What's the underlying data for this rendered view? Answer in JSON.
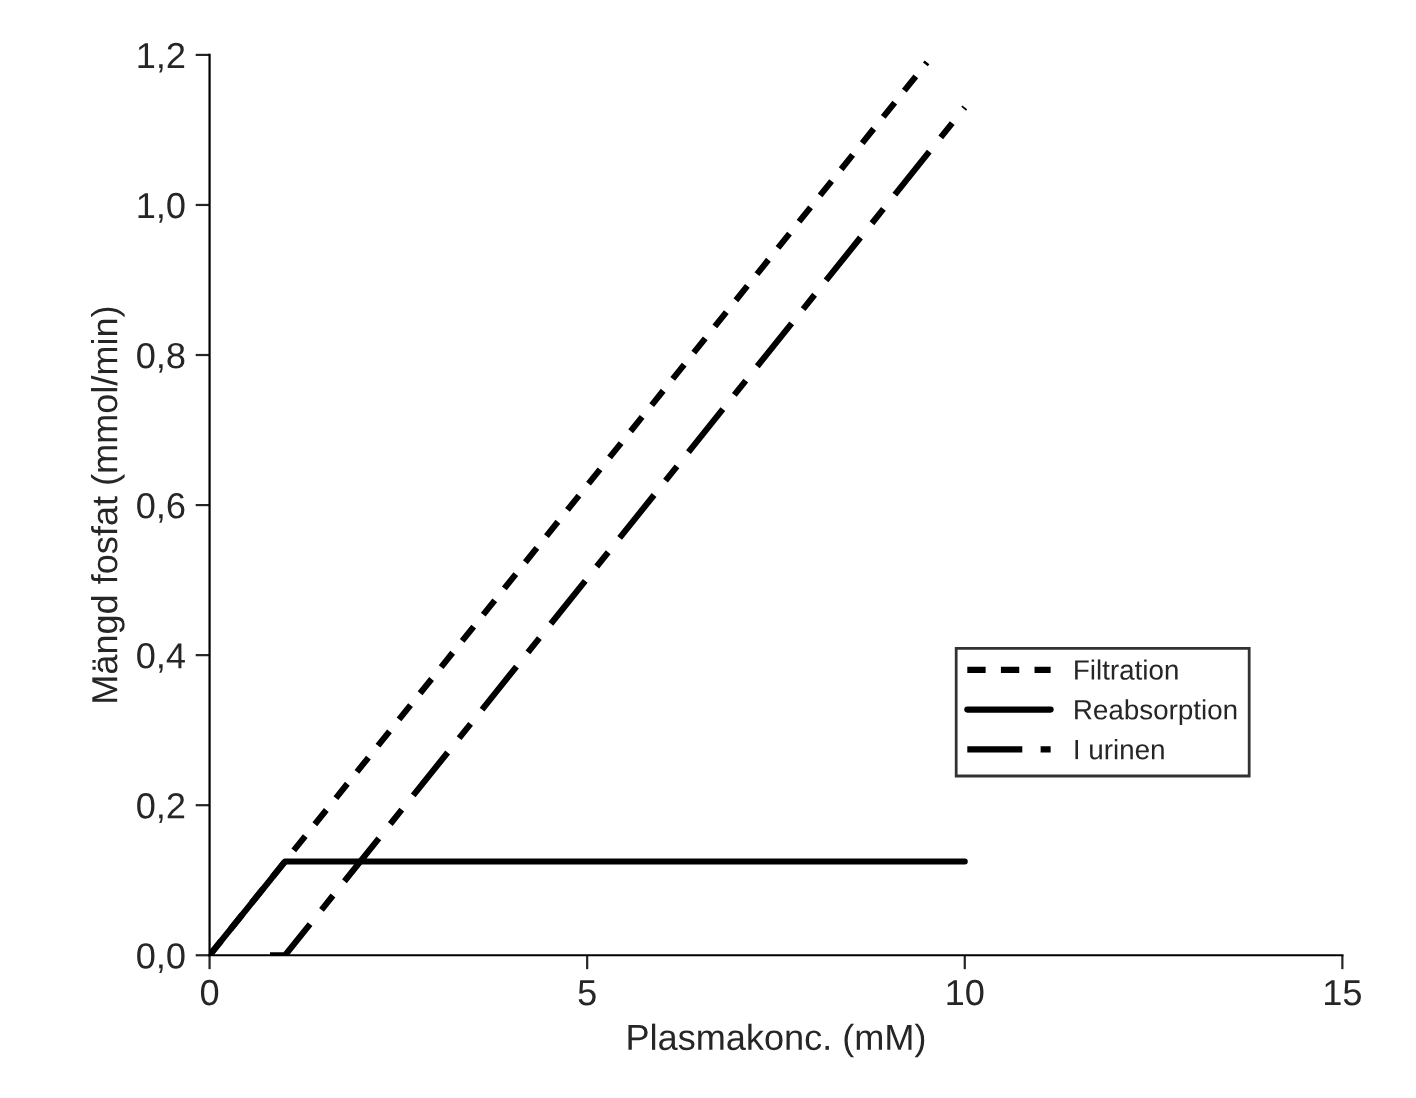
{
  "chart_data": {
    "type": "line",
    "xlabel": "Plasmakonc. (mM)",
    "ylabel": "Mängd fosfat (mmol/min)",
    "xlim": [
      0,
      15
    ],
    "xticks": [
      0,
      5,
      10,
      15
    ],
    "ylim": [
      0,
      1.2
    ],
    "yticks": [
      {
        "value": 0,
        "label": "0,0"
      },
      {
        "value": 0.2,
        "label": "0,2"
      },
      {
        "value": 0.4,
        "label": "0,4"
      },
      {
        "value": 0.6,
        "label": "0,6"
      },
      {
        "value": 0.8,
        "label": "0,8"
      },
      {
        "value": 1.0,
        "label": "1,0"
      },
      {
        "value": 1.2,
        "label": "1,2"
      }
    ],
    "grid": false,
    "legend": "right",
    "marker": "none",
    "series": [
      {
        "name": "Filtration",
        "color": "#000000",
        "line_style": "dotted",
        "x": [
          0,
          9.5
        ],
        "values": [
          0,
          1.19
        ]
      },
      {
        "name": "Reabsorption",
        "color": "#000000",
        "line_style": "solid",
        "x": [
          0,
          1,
          10
        ],
        "values": [
          0,
          0.125,
          0.125
        ]
      },
      {
        "name": "I urinen",
        "color": "#000000",
        "line_style": "dashdot",
        "x": [
          0.8,
          1,
          10
        ],
        "values": [
          0,
          0,
          1.13
        ]
      }
    ]
  }
}
